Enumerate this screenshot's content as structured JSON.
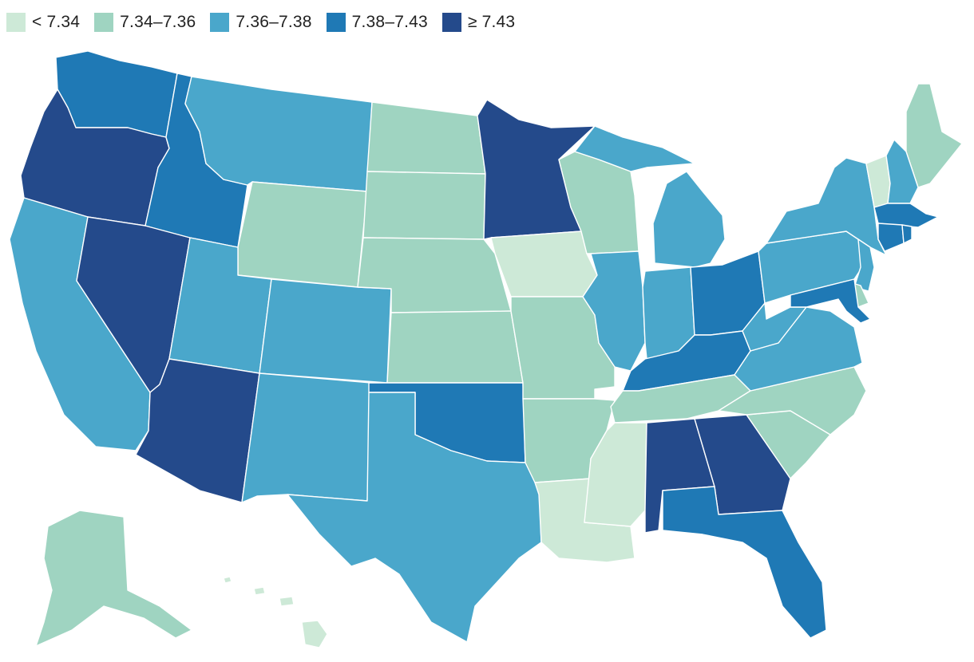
{
  "legend": [
    {
      "label": "< 7.34",
      "color": "#cde9d7"
    },
    {
      "label": "7.34–7.36",
      "color": "#9fd4c1"
    },
    {
      "label": "7.36–7.38",
      "color": "#4aa7cb"
    },
    {
      "label": "7.38–7.43",
      "color": "#1f79b5"
    },
    {
      "label": "≥ 7.43",
      "color": "#244a8b"
    }
  ],
  "states": {
    "WA": 3,
    "OR": 4,
    "CA": 2,
    "NV": 4,
    "ID": 3,
    "MT": 2,
    "WY": 1,
    "UT": 2,
    "AZ": 4,
    "CO": 2,
    "NM": 2,
    "ND": 1,
    "SD": 1,
    "NE": 1,
    "KS": 1,
    "OK": 3,
    "TX": 2,
    "MN": 4,
    "IA": 0,
    "MO": 1,
    "AR": 1,
    "LA": 0,
    "WI": 1,
    "IL": 2,
    "MI": 2,
    "IN": 2,
    "OH": 3,
    "KY": 3,
    "TN": 1,
    "MS": 0,
    "AL": 4,
    "GA": 4,
    "FL": 3,
    "SC": 1,
    "NC": 1,
    "VA": 2,
    "WV": 2,
    "PA": 2,
    "NY": 2,
    "ME": 1,
    "VT": 0,
    "NH": 2,
    "MA": 3,
    "CT": 3,
    "RI": 3,
    "NJ": 2,
    "DE": 1,
    "MD": 3,
    "AK": 1,
    "HI": 0
  }
}
